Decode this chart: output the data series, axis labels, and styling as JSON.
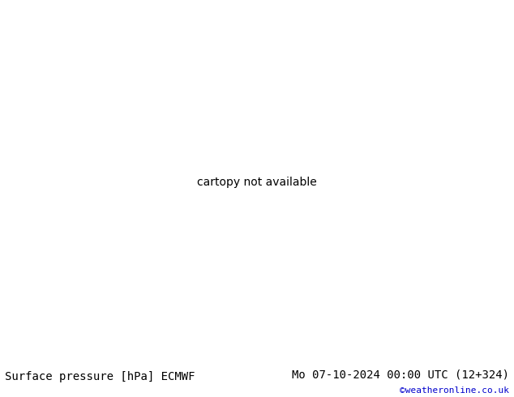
{
  "title_left": "Surface pressure [hPa] ECMWF",
  "title_right": "Mo 07-10-2024 00:00 UTC (12+324)",
  "credit": "©weatheronline.co.uk",
  "land_color": "#c8f0a8",
  "sea_color": "#d4e8d4",
  "ocean_color": "#d0ddd0",
  "border_color": "#909090",
  "coast_color": "#808080",
  "isobar_red": "#ff0000",
  "isobar_blue": "#0000ff",
  "black_color": "#000000",
  "bottom_bar_color": "#ffffff",
  "title_fontsize": 10,
  "credit_fontsize": 8,
  "label_fontsize": 7,
  "extent": [
    -10,
    42,
    27,
    52
  ],
  "fig_width": 6.34,
  "fig_height": 4.9,
  "dpi": 100
}
